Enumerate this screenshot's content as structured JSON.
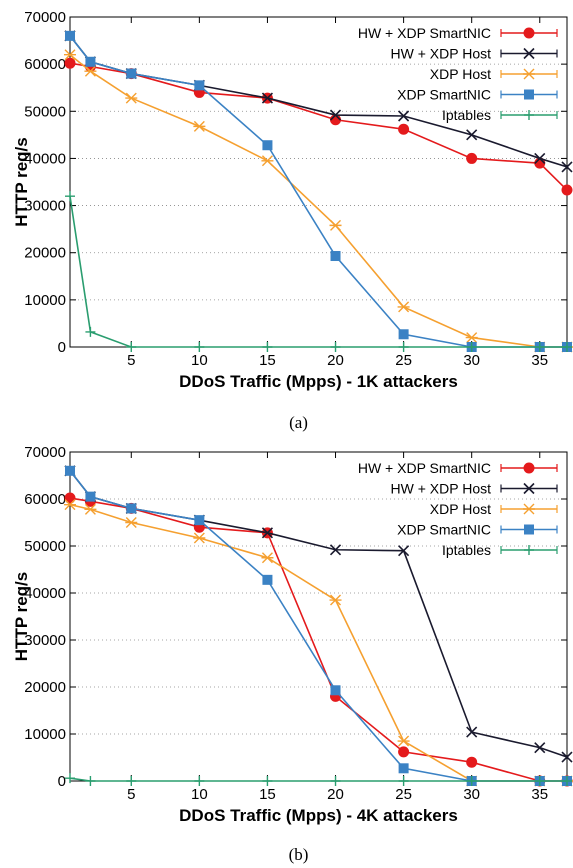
{
  "chart_data": [
    {
      "type": "line",
      "caption": "(a)",
      "xlabel": "DDoS Traffic (Mpps) - 1K attackers",
      "ylabel": "HTTP req/s",
      "xlim": [
        0.5,
        37
      ],
      "ylim": [
        0,
        70000
      ],
      "xticks": [
        5,
        10,
        15,
        20,
        25,
        30,
        35
      ],
      "yticks": [
        0,
        10000,
        20000,
        30000,
        40000,
        50000,
        60000,
        70000
      ],
      "grid": "horizontal dotted",
      "legend": "top-right",
      "series": [
        {
          "name": "HW + XDP SmartNIC",
          "color": "#e41a1c",
          "marker": "circle",
          "x": [
            0.5,
            2,
            5,
            10,
            15,
            20,
            25,
            30,
            35,
            37
          ],
          "y": [
            60200,
            59500,
            58000,
            54000,
            52800,
            48200,
            46200,
            40000,
            39000,
            33300
          ]
        },
        {
          "name": "HW + XDP Host",
          "color": "#1a1a2e",
          "marker": "x",
          "x": [
            0.5,
            2,
            5,
            10,
            15,
            20,
            25,
            30,
            35,
            37
          ],
          "y": [
            66000,
            60500,
            58000,
            55500,
            52800,
            49200,
            49000,
            45000,
            40000,
            38200
          ]
        },
        {
          "name": "XDP Host",
          "color": "#f5a030",
          "marker": "asterisk",
          "x": [
            0.5,
            2,
            5,
            10,
            15,
            20,
            25,
            30,
            35,
            37
          ],
          "y": [
            62000,
            58500,
            52800,
            46800,
            39500,
            25800,
            8500,
            2000,
            0,
            0
          ]
        },
        {
          "name": "XDP SmartNIC",
          "color": "#3b82c4",
          "marker": "square",
          "x": [
            0.5,
            2,
            5,
            10,
            15,
            20,
            25,
            30,
            35,
            37
          ],
          "y": [
            66000,
            60500,
            58000,
            55500,
            42800,
            19300,
            2700,
            0,
            0,
            0
          ]
        },
        {
          "name": "Iptables",
          "color": "#2a9d6f",
          "marker": "plus",
          "x": [
            0.5,
            2,
            5,
            10,
            15,
            20,
            25,
            30,
            35,
            37
          ],
          "y": [
            32000,
            3200,
            0,
            0,
            0,
            0,
            0,
            0,
            0,
            0
          ]
        }
      ]
    },
    {
      "type": "line",
      "caption": "(b)",
      "xlabel": "DDoS Traffic (Mpps) - 4K attackers",
      "ylabel": "HTTP req/s",
      "xlim": [
        0.5,
        37
      ],
      "ylim": [
        0,
        70000
      ],
      "xticks": [
        5,
        10,
        15,
        20,
        25,
        30,
        35
      ],
      "yticks": [
        0,
        10000,
        20000,
        30000,
        40000,
        50000,
        60000,
        70000
      ],
      "grid": "horizontal dotted",
      "legend": "top-right",
      "series": [
        {
          "name": "HW + XDP SmartNIC",
          "color": "#e41a1c",
          "marker": "circle",
          "x": [
            0.5,
            2,
            5,
            10,
            15,
            20,
            25,
            30,
            35,
            37
          ],
          "y": [
            60200,
            59500,
            58000,
            54000,
            52800,
            18000,
            6200,
            4000,
            0,
            0
          ]
        },
        {
          "name": "HW + XDP Host",
          "color": "#1a1a2e",
          "marker": "x",
          "x": [
            0.5,
            2,
            5,
            10,
            15,
            20,
            25,
            30,
            35,
            37
          ],
          "y": [
            66000,
            60500,
            58000,
            55500,
            52800,
            49200,
            49000,
            10400,
            7100,
            5100
          ]
        },
        {
          "name": "XDP Host",
          "color": "#f5a030",
          "marker": "asterisk",
          "x": [
            0.5,
            2,
            5,
            10,
            15,
            20,
            25,
            30,
            35,
            37
          ],
          "y": [
            58800,
            57800,
            55000,
            51700,
            47500,
            38500,
            8500,
            0,
            0,
            0
          ]
        },
        {
          "name": "XDP SmartNIC",
          "color": "#3b82c4",
          "marker": "square",
          "x": [
            0.5,
            2,
            5,
            10,
            15,
            20,
            25,
            30,
            35,
            37
          ],
          "y": [
            66000,
            60500,
            58000,
            55500,
            42800,
            19300,
            2700,
            0,
            0,
            0
          ]
        },
        {
          "name": "Iptables",
          "color": "#2a9d6f",
          "marker": "plus",
          "x": [
            0.5,
            2,
            5,
            10,
            15,
            20,
            25,
            30,
            35,
            37
          ],
          "y": [
            600,
            0,
            0,
            0,
            0,
            0,
            0,
            0,
            0,
            0
          ]
        }
      ]
    }
  ]
}
